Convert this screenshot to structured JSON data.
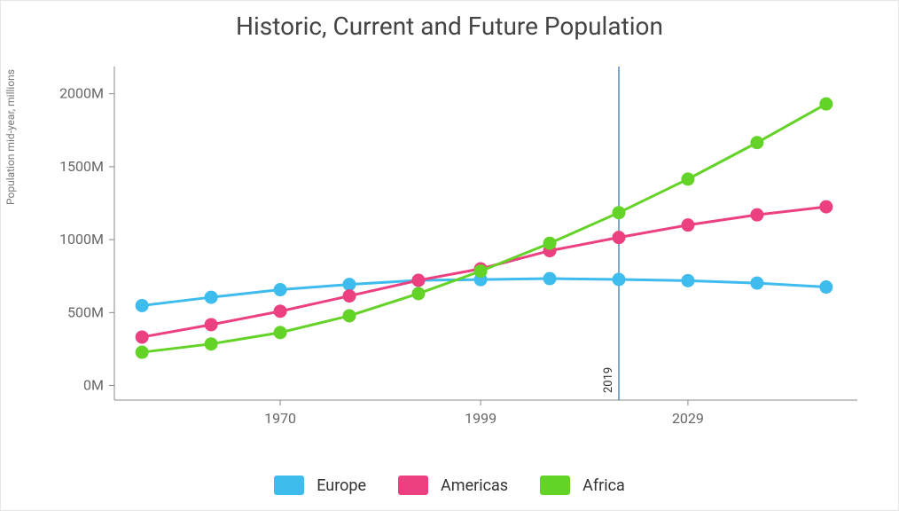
{
  "chart": {
    "type": "line",
    "title": "Historic, Current and Future Population",
    "title_fontsize": 28,
    "ylabel": "Population mid-year, millions",
    "ylabel_fontsize": 12,
    "background_color": "#ffffff",
    "border_color": "#e6e6e6",
    "axis_color": "#888888",
    "axis_text_color": "#666666",
    "axis_fontsize": 16,
    "x": {
      "values": [
        1950,
        1960,
        1970,
        1980,
        1990,
        1999,
        2009,
        2019,
        2029,
        2039,
        2049
      ],
      "tick_labels": [
        "1970",
        "1999",
        "2029"
      ],
      "tick_values": [
        1970,
        1999,
        2029
      ],
      "min": 1946,
      "max": 2053
    },
    "y": {
      "min": -100,
      "max": 2150,
      "ticks": [
        0,
        500,
        1000,
        1500,
        2000
      ],
      "tick_labels": [
        "0M",
        "500M",
        "1000M",
        "1500M",
        "2000M"
      ]
    },
    "reference_line": {
      "x": 2019,
      "label": "2019",
      "color": "#2a6fb0",
      "width": 1.2,
      "label_fontsize": 13
    },
    "marker_radius": 7.5,
    "line_width": 3,
    "series": [
      {
        "name": "Europe",
        "color": "#3dbced",
        "values": [
          548,
          605,
          657,
          693,
          721,
          726,
          733,
          727,
          719,
          702,
          675
        ]
      },
      {
        "name": "Americas",
        "color": "#ec4080",
        "values": [
          332,
          417,
          509,
          614,
          721,
          800,
          924,
          1015,
          1100,
          1170,
          1225
        ]
      },
      {
        "name": "Africa",
        "color": "#64d327",
        "values": [
          228,
          285,
          363,
          478,
          630,
          784,
          975,
          1185,
          1415,
          1665,
          1930
        ]
      }
    ],
    "legend": {
      "swatch_w": 34,
      "swatch_h": 22,
      "fontsize": 18
    }
  }
}
